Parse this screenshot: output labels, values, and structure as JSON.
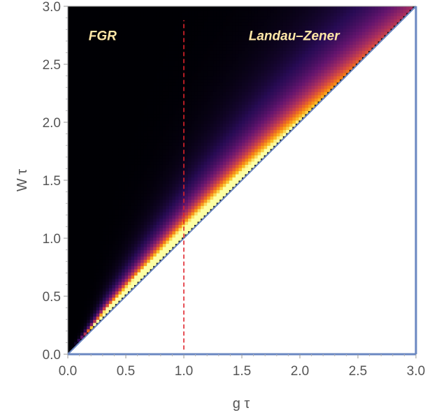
{
  "chart_data": {
    "type": "heatmap",
    "title": "",
    "xlabel": "g τ",
    "ylabel": "W τ",
    "xlim": [
      0,
      3
    ],
    "ylim": [
      0,
      3
    ],
    "x_ticks": [
      "0.0",
      "0.5",
      "1.0",
      "1.5",
      "2.0",
      "2.5",
      "3.0"
    ],
    "y_ticks": [
      "0.0",
      "0.5",
      "1.0",
      "1.5",
      "2.0",
      "2.5",
      "3.0"
    ],
    "x_tick_values": [
      0,
      0.5,
      1.0,
      1.5,
      2.0,
      2.5,
      3.0
    ],
    "y_tick_values": [
      0,
      0.5,
      1.0,
      1.5,
      2.0,
      2.5,
      3.0
    ],
    "colormap": "inferno",
    "domain_boundary": {
      "line": "W τ = g τ",
      "points": [
        [
          0,
          0
        ],
        [
          3,
          3
        ]
      ],
      "color": "#6a87c1"
    },
    "vertical_marker": {
      "x": 1.0,
      "style": "dashed",
      "color": "#e0242c"
    },
    "peak": {
      "x": 0.65,
      "y": 0.72
    },
    "annotations": [
      {
        "text": "FGR",
        "x": 0.3,
        "y": 2.75
      },
      {
        "text": "Landau–Zener",
        "x": 1.95,
        "y": 2.75
      }
    ],
    "grid": false
  }
}
